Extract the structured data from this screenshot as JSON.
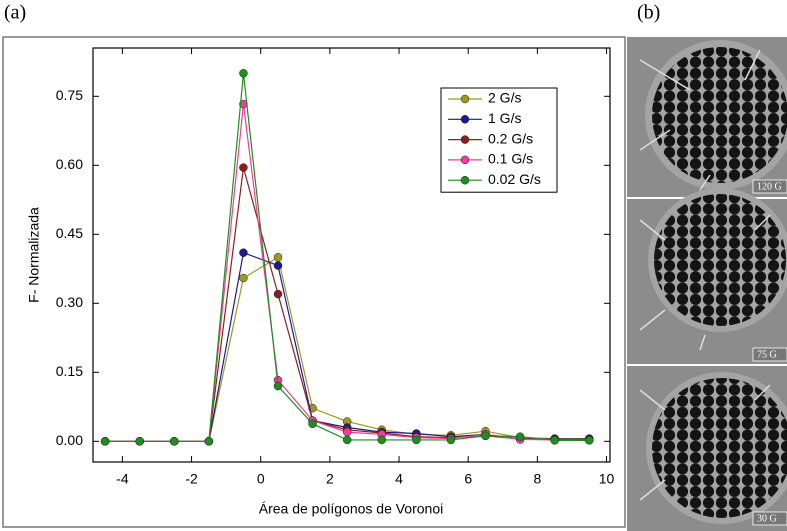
{
  "panel_labels": [
    "(a)",
    "(b)"
  ],
  "images": [
    {
      "label": "120 G"
    },
    {
      "label": "75 G"
    },
    {
      "label": "30 G"
    }
  ],
  "chart_data": {
    "type": "line",
    "x_label": "Área de polígonos de Voronoi",
    "y_label": "F- Normalizada",
    "x": [
      -4.5,
      -3.5,
      -2.5,
      -1.5,
      -0.5,
      0.5,
      1.5,
      2.5,
      3.5,
      4.5,
      5.5,
      6.5,
      7.5,
      8.5,
      9.5
    ],
    "series": [
      {
        "name": "2 G/s",
        "color": "#9c9a1e",
        "values": [
          0,
          0,
          0,
          0,
          0.355,
          0.4,
          0.072,
          0.043,
          0.025,
          0.015,
          0.013,
          0.022,
          0.008,
          0.006,
          0.006
        ]
      },
      {
        "name": "1 G/s",
        "color": "#1c1c8e",
        "values": [
          0,
          0,
          0,
          0,
          0.41,
          0.382,
          0.045,
          0.03,
          0.02,
          0.017,
          0.01,
          0.015,
          0.005,
          0.005,
          0.005
        ]
      },
      {
        "name": "0.2 G/s",
        "color": "#8e1c1c",
        "values": [
          0,
          0,
          0,
          0,
          0.595,
          0.32,
          0.045,
          0.025,
          0.018,
          0.01,
          0.008,
          0.012,
          0.005,
          0.004,
          0.004
        ]
      },
      {
        "name": "0.1 G/s",
        "color": "#f03c9c",
        "values": [
          0,
          0,
          0,
          0,
          0.733,
          0.133,
          0.045,
          0.02,
          0.015,
          0.008,
          0.006,
          0.015,
          0.004,
          0.003,
          0.003
        ]
      },
      {
        "name": "0.02 G/s",
        "color": "#1e8e1e",
        "values": [
          0,
          0,
          0,
          0,
          0.8,
          0.12,
          0.038,
          0.003,
          0.003,
          0.003,
          0.003,
          0.012,
          0.01,
          0.002,
          0.002
        ]
      }
    ],
    "xlim": [
      -4.85,
      10.1
    ],
    "ylim": [
      -0.045,
      0.855
    ],
    "xticks": [
      -4,
      -2,
      0,
      2,
      4,
      6,
      8,
      10
    ],
    "yticks": [
      {
        "value": 0,
        "label": "0.00"
      },
      0.15,
      {
        "value": 0.3,
        "label": "0.30"
      },
      0.45,
      {
        "value": 0.6,
        "label": "0.60"
      },
      0.75
    ],
    "legend": "upper right"
  }
}
